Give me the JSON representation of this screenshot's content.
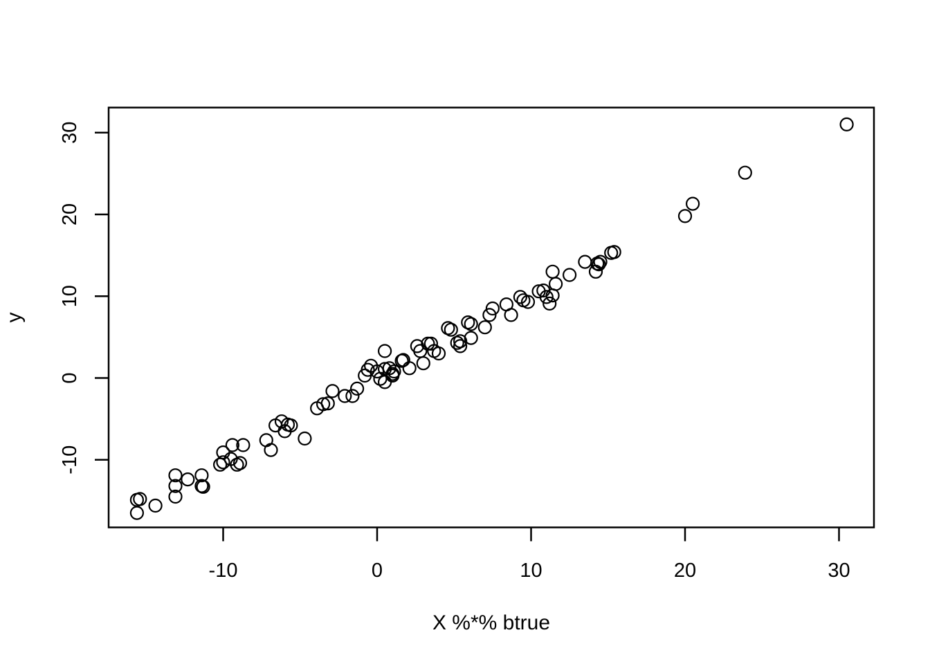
{
  "figure": {
    "background": "#ffffff",
    "foreground": "#000000"
  },
  "chart_data": {
    "type": "scatter",
    "title": "",
    "xlabel": "X %*% btrue",
    "ylabel": "y",
    "marker": "open-circle",
    "marker_color": "#000000",
    "grid": false,
    "legend": null,
    "x_ticks": [
      -10,
      0,
      10,
      20,
      30
    ],
    "y_ticks": [
      -10,
      0,
      10,
      20,
      30
    ],
    "xlim": [
      -17.4,
      32.3
    ],
    "ylim": [
      -18.3,
      33.1
    ],
    "points": [
      [
        -15.6,
        -14.9
      ],
      [
        -15.4,
        -14.8
      ],
      [
        -15.6,
        -16.5
      ],
      [
        -14.4,
        -15.6
      ],
      [
        -13.1,
        -11.9
      ],
      [
        -13.1,
        -13.2
      ],
      [
        -13.1,
        -14.5
      ],
      [
        -12.3,
        -12.4
      ],
      [
        -11.4,
        -11.9
      ],
      [
        -11.4,
        -13.2
      ],
      [
        -11.3,
        -13.3
      ],
      [
        -10.0,
        -9.1
      ],
      [
        -10.2,
        -10.6
      ],
      [
        -10.0,
        -10.3
      ],
      [
        -9.4,
        -8.2
      ],
      [
        -8.7,
        -8.2
      ],
      [
        -9.5,
        -9.9
      ],
      [
        -9.1,
        -10.6
      ],
      [
        -8.9,
        -10.4
      ],
      [
        -7.2,
        -7.6
      ],
      [
        -6.9,
        -8.8
      ],
      [
        -6.6,
        -5.8
      ],
      [
        -6.2,
        -5.3
      ],
      [
        -6.0,
        -6.5
      ],
      [
        -5.8,
        -5.7
      ],
      [
        -5.6,
        -5.8
      ],
      [
        -4.7,
        -7.4
      ],
      [
        -3.9,
        -3.7
      ],
      [
        -3.5,
        -3.2
      ],
      [
        -3.2,
        -3.1
      ],
      [
        -2.9,
        -1.6
      ],
      [
        -2.1,
        -2.2
      ],
      [
        -1.6,
        -2.2
      ],
      [
        -1.3,
        -1.3
      ],
      [
        -0.8,
        0.3
      ],
      [
        -0.6,
        1.0
      ],
      [
        -0.4,
        1.5
      ],
      [
        0.0,
        0.8
      ],
      [
        0.2,
        -0.1
      ],
      [
        0.5,
        1.1
      ],
      [
        0.5,
        -0.5
      ],
      [
        0.8,
        1.2
      ],
      [
        1.0,
        0.5
      ],
      [
        1.0,
        0.3
      ],
      [
        1.1,
        0.8
      ],
      [
        0.5,
        3.3
      ],
      [
        1.6,
        2.1
      ],
      [
        1.7,
        2.2
      ],
      [
        2.1,
        1.2
      ],
      [
        2.6,
        3.9
      ],
      [
        2.8,
        3.3
      ],
      [
        3.0,
        1.8
      ],
      [
        3.3,
        4.2
      ],
      [
        3.5,
        4.2
      ],
      [
        3.7,
        3.3
      ],
      [
        4.0,
        3.0
      ],
      [
        4.6,
        6.1
      ],
      [
        4.8,
        5.9
      ],
      [
        5.2,
        4.3
      ],
      [
        5.4,
        4.5
      ],
      [
        5.4,
        3.9
      ],
      [
        5.9,
        6.8
      ],
      [
        6.1,
        6.6
      ],
      [
        6.1,
        4.9
      ],
      [
        7.0,
        6.2
      ],
      [
        7.3,
        7.7
      ],
      [
        7.5,
        8.5
      ],
      [
        8.4,
        9.0
      ],
      [
        8.7,
        7.7
      ],
      [
        9.3,
        9.9
      ],
      [
        9.5,
        9.5
      ],
      [
        9.8,
        9.3
      ],
      [
        10.5,
        10.6
      ],
      [
        10.8,
        10.7
      ],
      [
        11.0,
        9.9
      ],
      [
        11.4,
        10.1
      ],
      [
        11.2,
        9.1
      ],
      [
        11.4,
        13.0
      ],
      [
        11.6,
        11.5
      ],
      [
        12.5,
        12.6
      ],
      [
        13.5,
        14.2
      ],
      [
        14.2,
        13.0
      ],
      [
        14.3,
        14.0
      ],
      [
        14.4,
        13.9
      ],
      [
        14.5,
        14.2
      ],
      [
        15.2,
        15.3
      ],
      [
        15.4,
        15.4
      ],
      [
        20.0,
        19.8
      ],
      [
        20.5,
        21.3
      ],
      [
        23.9,
        25.1
      ],
      [
        30.5,
        31.0
      ]
    ]
  }
}
